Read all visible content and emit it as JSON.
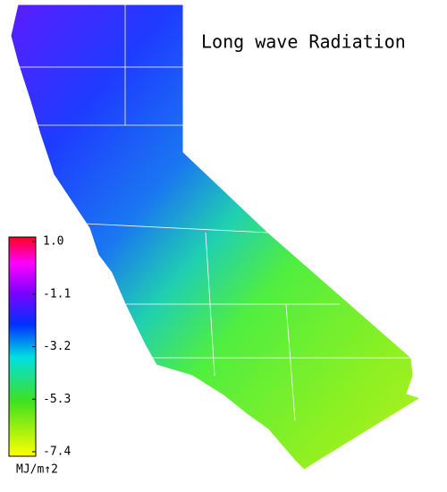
{
  "title": "Long wave Radiation",
  "colorbar": {
    "ticks": [
      {
        "value": 1,
        "label": "1.0"
      },
      -1.1,
      -3.2,
      -5.3,
      -7.4
    ],
    "unit": "MJ/m↑2"
  }
}
